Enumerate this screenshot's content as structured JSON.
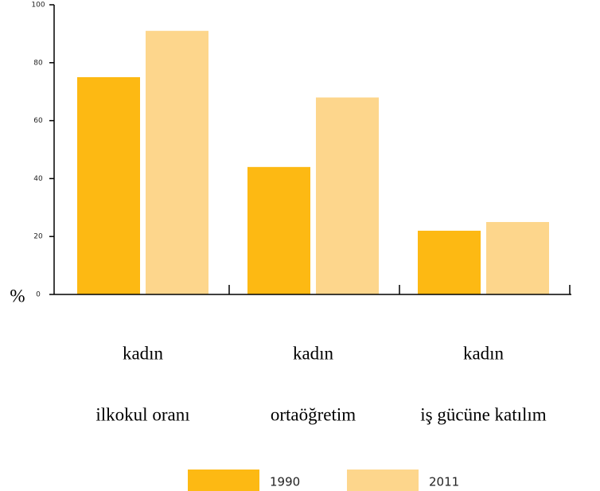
{
  "chart_data": {
    "type": "bar",
    "y_label": "%",
    "categories": [
      [
        "kadın",
        "ilkokul oranı"
      ],
      [
        "kadın",
        "ortaöğretim"
      ],
      [
        "kadın",
        "iş gücüne katılım"
      ]
    ],
    "series": [
      {
        "name": "1990",
        "color": "#fdb913",
        "values": [
          75,
          44,
          22
        ]
      },
      {
        "name": "2011",
        "color": "#fdd68c",
        "values": [
          91,
          68,
          25
        ]
      }
    ],
    "ylim": [
      0,
      100
    ],
    "yticks": [
      0,
      20,
      40,
      60,
      80,
      100
    ]
  }
}
